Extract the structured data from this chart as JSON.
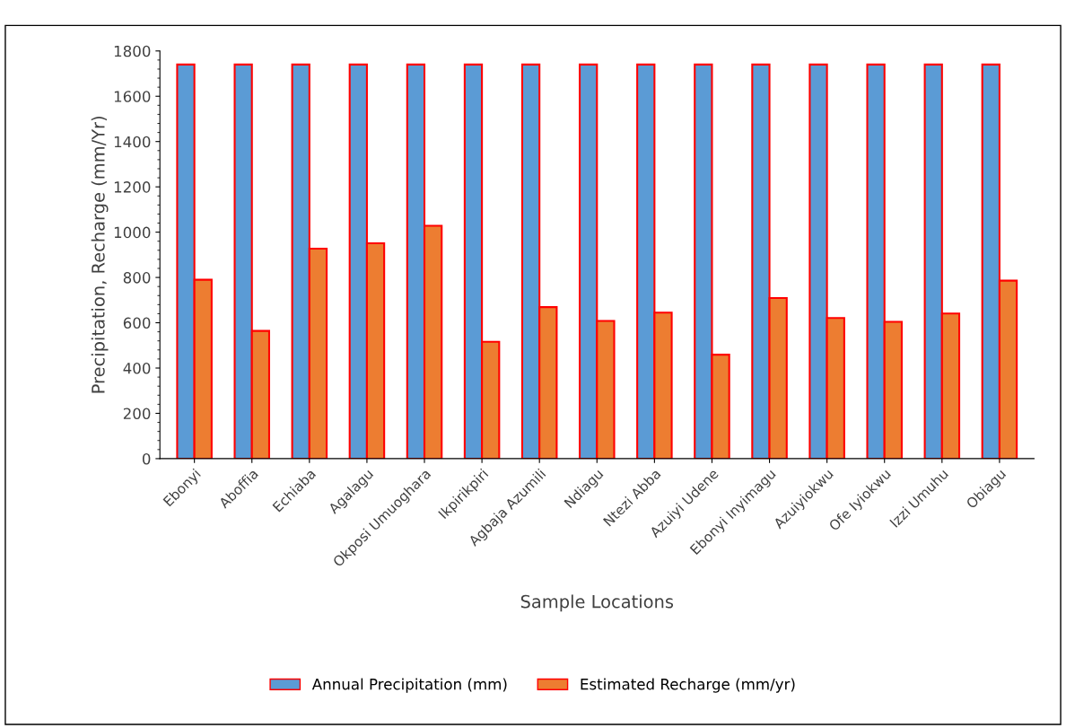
{
  "chart_data": {
    "type": "bar",
    "xlabel": "Sample Locations",
    "ylabel": "Precipitation, Recharge (mm/Yr)",
    "categories": [
      "Ebonyi",
      "Aboffia",
      "Echiaba",
      "Agalagu",
      "Okposi Umuoghara",
      "Ikpirikpiri",
      "Agbaja Azumili",
      "Ndiagu",
      "Ntezi Abba",
      "Azuiyi Udene",
      "Ebonyi Inyimagu",
      "Azuiyiokwu",
      "Ofe Iyiokwu",
      "Izzi Umuhu",
      "Obiagu"
    ],
    "series": [
      {
        "name": "Annual Precipitation (mm)",
        "color": "#5b9bd5",
        "values": [
          1740,
          1740,
          1740,
          1740,
          1740,
          1740,
          1740,
          1740,
          1740,
          1740,
          1740,
          1740,
          1740,
          1740,
          1740
        ]
      },
      {
        "name": "Estimated Recharge (mm/yr)",
        "color": "#ed7d31",
        "values": [
          790,
          564,
          927,
          951,
          1028,
          516,
          669,
          608,
          645,
          459,
          709,
          621,
          604,
          641,
          786
        ]
      }
    ],
    "ylim": [
      0,
      1800
    ],
    "yticks": [
      0,
      200,
      400,
      600,
      800,
      1000,
      1200,
      1400,
      1600,
      1800
    ],
    "grid": false,
    "legend": "bottom"
  }
}
